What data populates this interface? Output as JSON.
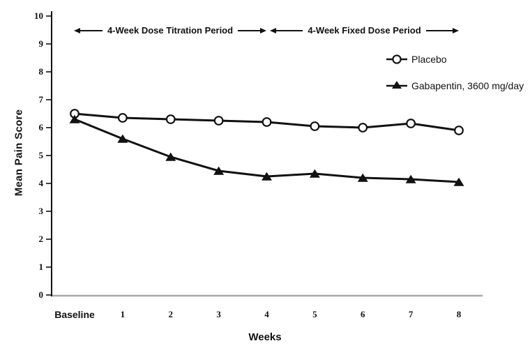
{
  "chart_data": {
    "type": "line",
    "title": "",
    "xlabel": "Weeks",
    "ylabel": "Mean Pain Score",
    "categories": [
      "Baseline",
      "1",
      "2",
      "3",
      "4",
      "5",
      "6",
      "7",
      "8"
    ],
    "yticks": [
      0,
      1,
      2,
      3,
      4,
      5,
      6,
      7,
      8,
      9,
      10
    ],
    "ylim": [
      0,
      10
    ],
    "grid": false,
    "legend_position": "upper-right",
    "series": [
      {
        "name": "Placebo",
        "marker": "open-circle",
        "values": [
          6.5,
          6.35,
          6.3,
          6.25,
          6.2,
          6.05,
          6.0,
          6.15,
          5.9
        ]
      },
      {
        "name": "Gabapentin, 3600 mg/day",
        "marker": "filled-triangle",
        "values": [
          6.3,
          5.6,
          4.95,
          4.45,
          4.25,
          4.35,
          4.2,
          4.15,
          4.05
        ]
      }
    ],
    "annotations": [
      {
        "text": "4-Week Dose Titration Period",
        "span": "Baseline to Week 4"
      },
      {
        "text": "4-Week Fixed Dose Period",
        "span": "Week 4 to Week 8"
      }
    ],
    "colors": {
      "series_line": "#111111",
      "x_axis_line": "#a8a8a8",
      "y_axis_line": "#111111",
      "background": "#ffffff"
    }
  }
}
